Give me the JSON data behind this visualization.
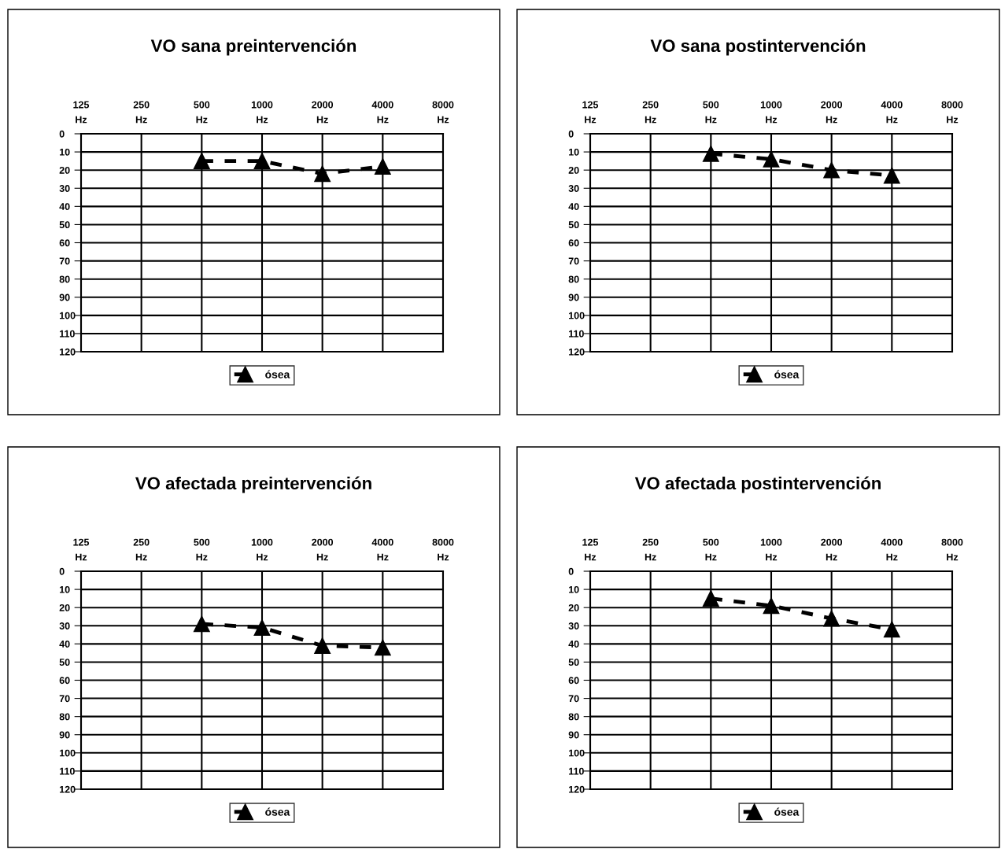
{
  "chart_data": [
    {
      "type": "line",
      "title": "VO sana preintervención",
      "categories": [
        "125 Hz",
        "250 Hz",
        "500 Hz",
        "1000 Hz",
        "2000 Hz",
        "4000 Hz",
        "8000 Hz"
      ],
      "series": [
        {
          "name": "ósea",
          "color": "#000000",
          "values": [
            null,
            null,
            15,
            15,
            22,
            18,
            null
          ]
        }
      ],
      "ylim": [
        120,
        0
      ],
      "yticks": [
        0,
        10,
        20,
        30,
        40,
        50,
        60,
        70,
        80,
        90,
        100,
        110,
        120
      ],
      "grid": true,
      "legend": "bottom",
      "marker": "triangle",
      "line_style": "dashed"
    },
    {
      "type": "line",
      "title": "VO sana postintervención",
      "categories": [
        "125 Hz",
        "250 Hz",
        "500 Hz",
        "1000 Hz",
        "2000 Hz",
        "4000 Hz",
        "8000 Hz"
      ],
      "series": [
        {
          "name": "ósea",
          "color": "#000000",
          "values": [
            null,
            null,
            11,
            14,
            20,
            23,
            null
          ]
        }
      ],
      "ylim": [
        120,
        0
      ],
      "yticks": [
        0,
        10,
        20,
        30,
        40,
        50,
        60,
        70,
        80,
        90,
        100,
        110,
        120
      ],
      "grid": true,
      "legend": "bottom",
      "marker": "triangle",
      "line_style": "dashed"
    },
    {
      "type": "line",
      "title": "VO afectada preintervención",
      "categories": [
        "125 Hz",
        "250 Hz",
        "500 Hz",
        "1000 Hz",
        "2000 Hz",
        "4000 Hz",
        "8000 Hz"
      ],
      "series": [
        {
          "name": "ósea",
          "color": "#000000",
          "values": [
            null,
            null,
            29,
            31,
            41,
            42,
            null
          ]
        }
      ],
      "ylim": [
        120,
        0
      ],
      "yticks": [
        0,
        10,
        20,
        30,
        40,
        50,
        60,
        70,
        80,
        90,
        100,
        110,
        120
      ],
      "grid": true,
      "legend": "bottom",
      "marker": "triangle",
      "line_style": "dashed"
    },
    {
      "type": "line",
      "title": "VO afectada postintervención",
      "categories": [
        "125 Hz",
        "250 Hz",
        "500 Hz",
        "1000 Hz",
        "2000 Hz",
        "4000 Hz",
        "8000 Hz"
      ],
      "series": [
        {
          "name": "ósea",
          "color": "#000000",
          "values": [
            null,
            null,
            15,
            19,
            26,
            32,
            null
          ]
        }
      ],
      "ylim": [
        120,
        0
      ],
      "yticks": [
        0,
        10,
        20,
        30,
        40,
        50,
        60,
        70,
        80,
        90,
        100,
        110,
        120
      ],
      "grid": true,
      "legend": "bottom",
      "marker": "triangle",
      "line_style": "dashed"
    }
  ]
}
